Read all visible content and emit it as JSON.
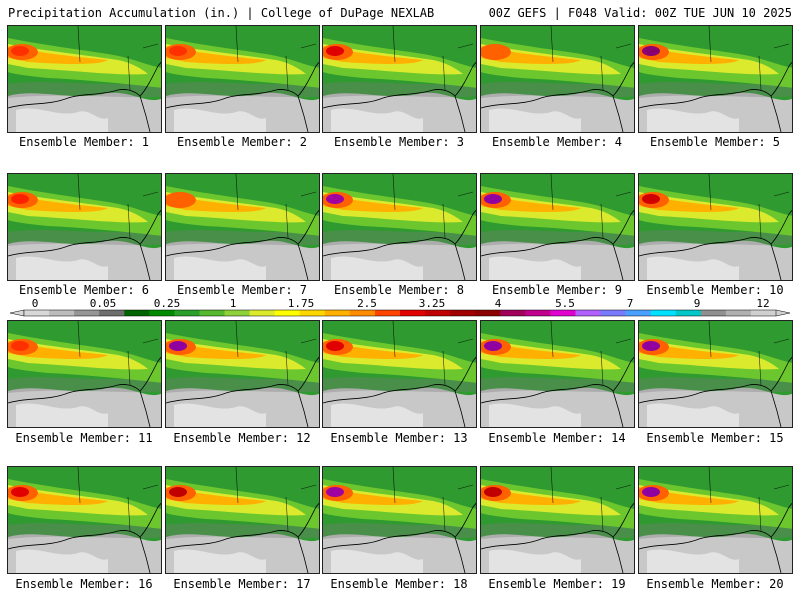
{
  "header": {
    "title": "Precipitation Accumulation (in.) | College of DuPage NEXLAB",
    "run_info": "00Z GEFS | F048 Valid: 00Z TUE JUN 10 2025"
  },
  "colorbar": {
    "labels": [
      "0",
      "0.05",
      "0.25",
      "1",
      "1.75",
      "2.5",
      "3.25",
      "4",
      "5.5",
      "7",
      "9",
      "12"
    ],
    "colors": [
      "#d8d8d8",
      "#bcbcbc",
      "#969696",
      "#6e6e6e",
      "#006400",
      "#008a00",
      "#2aa02a",
      "#55b82e",
      "#8fd13a",
      "#dcea2e",
      "#ffff00",
      "#ffd700",
      "#ffb000",
      "#ff8c00",
      "#ff4500",
      "#e00000",
      "#c00000",
      "#a00000",
      "#8b0000",
      "#a0005a",
      "#c0008c",
      "#e000d0",
      "#b060ff",
      "#7a7aff",
      "#4aa0ff",
      "#00e0ff",
      "#00c8c8",
      "#909090",
      "#b0b0b0",
      "#d0d0d0"
    ]
  },
  "members": [
    {
      "label": "Ensemble Member: 1",
      "max_color": "#ff3000"
    },
    {
      "label": "Ensemble Member: 2",
      "max_color": "#ff3000"
    },
    {
      "label": "Ensemble Member: 3",
      "max_color": "#e00000"
    },
    {
      "label": "Ensemble Member: 4",
      "max_color": "#ff6000"
    },
    {
      "label": "Ensemble Member: 5",
      "max_color": "#8b0070"
    },
    {
      "label": "Ensemble Member: 6",
      "max_color": "#ff2000"
    },
    {
      "label": "Ensemble Member: 7",
      "max_color": "#ff6000"
    },
    {
      "label": "Ensemble Member: 8",
      "max_color": "#a000a0"
    },
    {
      "label": "Ensemble Member: 9",
      "max_color": "#9000a0"
    },
    {
      "label": "Ensemble Member: 10",
      "max_color": "#d00000"
    },
    {
      "label": "Ensemble Member: 11",
      "max_color": "#ff3000"
    },
    {
      "label": "Ensemble Member: 12",
      "max_color": "#9000a0"
    },
    {
      "label": "Ensemble Member: 13",
      "max_color": "#e00000"
    },
    {
      "label": "Ensemble Member: 14",
      "max_color": "#9000a0"
    },
    {
      "label": "Ensemble Member: 15",
      "max_color": "#9000a0"
    },
    {
      "label": "Ensemble Member: 16",
      "max_color": "#e00000"
    },
    {
      "label": "Ensemble Member: 17",
      "max_color": "#c00000"
    },
    {
      "label": "Ensemble Member: 18",
      "max_color": "#a000a0"
    },
    {
      "label": "Ensemble Member: 19",
      "max_color": "#c00000"
    },
    {
      "label": "Ensemble Member: 20",
      "max_color": "#9000a0"
    }
  ]
}
